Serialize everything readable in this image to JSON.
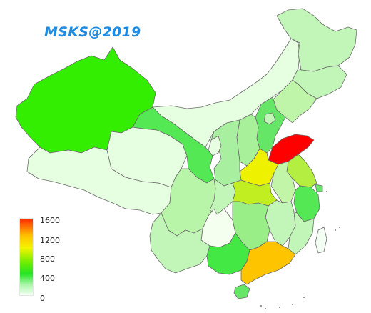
{
  "map": {
    "watermark": "MSKS@2019",
    "legend": {
      "ticks": [
        "1600",
        "1200",
        "800",
        "400",
        "0"
      ],
      "colors": [
        "#ff2a00",
        "#ffc000",
        "#f4f400",
        "#77ee00",
        "#22e622",
        "#a8f5a8",
        "#f4fff4"
      ]
    },
    "regions": [
      {
        "name": "xinjiang",
        "fill": "#33ee00"
      },
      {
        "name": "tibet",
        "fill": "#e6ffe0"
      },
      {
        "name": "qinghai",
        "fill": "#e6ffe0"
      },
      {
        "name": "gansu",
        "fill": "#55e855"
      },
      {
        "name": "inner-mongolia",
        "fill": "#e6ffe0"
      },
      {
        "name": "heilongjiang",
        "fill": "#c2f5b8"
      },
      {
        "name": "jilin",
        "fill": "#c2f5b8"
      },
      {
        "name": "liaoning",
        "fill": "#bff5a8"
      },
      {
        "name": "hebei",
        "fill": "#66e666"
      },
      {
        "name": "beijing",
        "fill": "#c2f5b8"
      },
      {
        "name": "shanxi",
        "fill": "#a8f09a"
      },
      {
        "name": "shandong",
        "fill": "#ff0000"
      },
      {
        "name": "henan",
        "fill": "#eef200"
      },
      {
        "name": "jiangsu",
        "fill": "#b4ee40"
      },
      {
        "name": "anhui",
        "fill": "#c2f5a8"
      },
      {
        "name": "shaanxi",
        "fill": "#a8f0a0"
      },
      {
        "name": "ningxia",
        "fill": "#e6ffe0"
      },
      {
        "name": "sichuan",
        "fill": "#b8f5a8"
      },
      {
        "name": "chongqing",
        "fill": "#c2f5b8"
      },
      {
        "name": "hubei",
        "fill": "#c0ee20"
      },
      {
        "name": "zhejiang",
        "fill": "#55e855"
      },
      {
        "name": "shanghai",
        "fill": "#66e666"
      },
      {
        "name": "jiangxi",
        "fill": "#c2f5b8"
      },
      {
        "name": "hunan",
        "fill": "#99ee88"
      },
      {
        "name": "fujian",
        "fill": "#c2f5b8"
      },
      {
        "name": "guizhou",
        "fill": "#f4fff0"
      },
      {
        "name": "yunnan",
        "fill": "#c2f5b8"
      },
      {
        "name": "guangxi",
        "fill": "#44e844"
      },
      {
        "name": "guangdong",
        "fill": "#ffc400"
      },
      {
        "name": "hainan",
        "fill": "#66e666"
      },
      {
        "name": "taiwan",
        "fill": "#f4fff4"
      }
    ]
  }
}
